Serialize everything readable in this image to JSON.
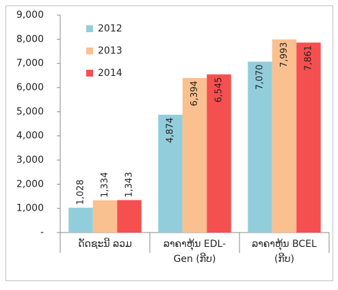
{
  "chart_data": {
    "type": "bar",
    "categories": [
      "ດັດຊະນີ ລວມ",
      "ລາຄາຫຸ້ນ EDL-Gen (ກີບ)",
      "ລາຄາຫຸ້ນ BCEL (ກີບ)"
    ],
    "series": [
      {
        "name": "2012",
        "color": "#92cddc",
        "values": [
          1028,
          4874,
          7070
        ],
        "value_labels": [
          "1,028",
          "4,874",
          "7,070"
        ]
      },
      {
        "name": "2013",
        "color": "#fac090",
        "values": [
          1334,
          6394,
          7993
        ],
        "value_labels": [
          "1,334",
          "6,394",
          "7,993"
        ]
      },
      {
        "name": "2014",
        "color": "#f5504f",
        "values": [
          1343,
          6545,
          7861
        ],
        "value_labels": [
          "1,343",
          "6,545",
          "7,861"
        ]
      }
    ],
    "ylim": [
      0,
      9000
    ],
    "yticks": [
      {
        "value": 0,
        "label": "-"
      },
      {
        "value": 1000,
        "label": "1,000"
      },
      {
        "value": 2000,
        "label": "2,000"
      },
      {
        "value": 3000,
        "label": "3,000"
      },
      {
        "value": 4000,
        "label": "4,000"
      },
      {
        "value": 5000,
        "label": "5,000"
      },
      {
        "value": 6000,
        "label": "6,000"
      },
      {
        "value": 7000,
        "label": "7,000"
      },
      {
        "value": 8000,
        "label": "8,000"
      },
      {
        "value": 9000,
        "label": "9,000"
      }
    ],
    "grid": false,
    "legend": "upper left"
  }
}
